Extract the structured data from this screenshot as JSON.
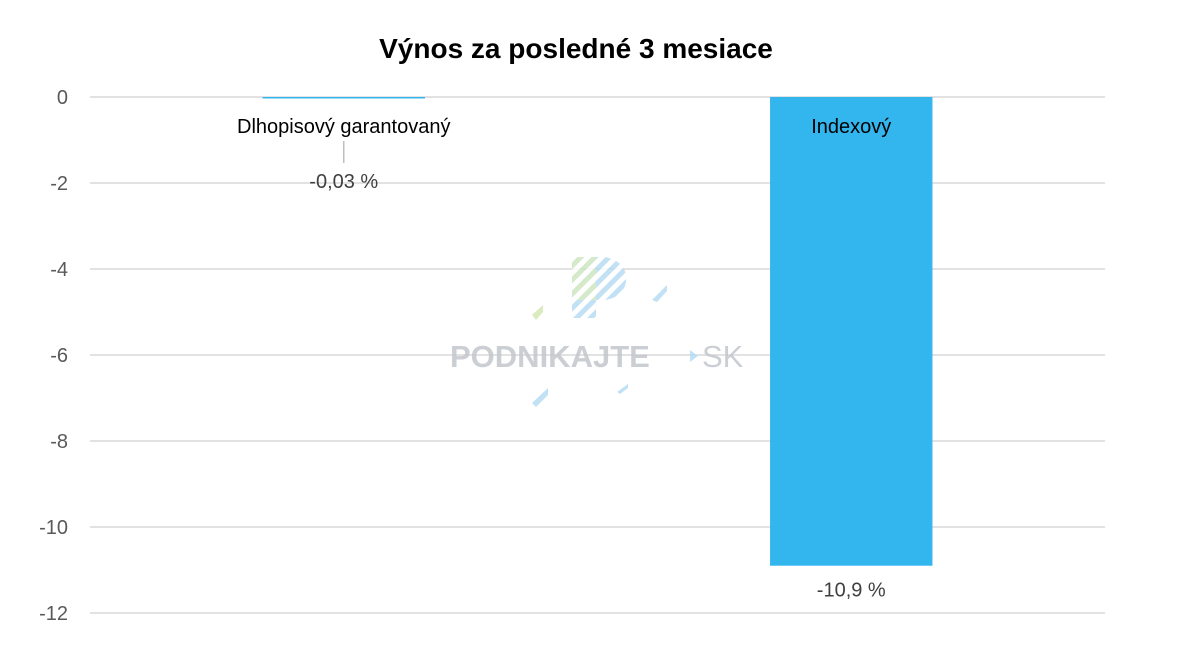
{
  "chart_data": {
    "type": "bar",
    "title": "Výnos za posledné 3 mesiace",
    "categories": [
      "Dlhopisový garantovaný",
      "Indexový"
    ],
    "values": [
      -0.03,
      -10.9
    ],
    "data_labels": [
      "-0,03 %",
      "-10,9 %"
    ],
    "ylim": [
      -12,
      0
    ],
    "yticks": [
      0,
      -2,
      -4,
      -6,
      -8,
      -10,
      -12
    ],
    "grid": true,
    "bar_color": "#33b5ed",
    "xlabel": "",
    "ylabel": ""
  },
  "watermark": {
    "brand": "PODNIKAJTE",
    "suffix": "SK",
    "logo_icon": "podnikajte-logo-icon"
  },
  "colors": {
    "grid": "#d9d9d9",
    "text": "#595959",
    "watermark_gray": "#c3c7cd"
  }
}
